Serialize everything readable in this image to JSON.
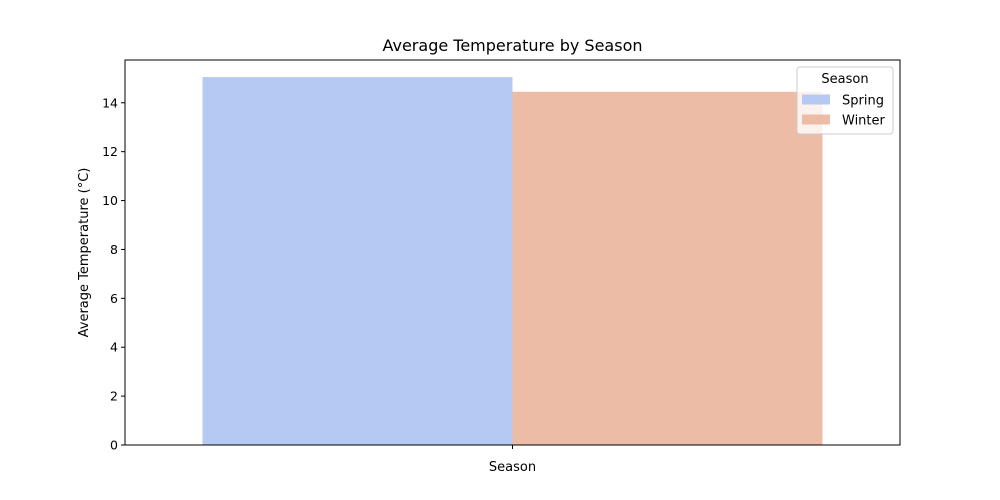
{
  "chart_data": {
    "type": "bar",
    "title": "Average Temperature by Season",
    "xlabel": "Season",
    "ylabel": "Average Temperature (°C)",
    "ylim": [
      0,
      15.75
    ],
    "yticks": [
      0,
      2,
      4,
      6,
      8,
      10,
      12,
      14
    ],
    "grid": false,
    "legend": {
      "title": "Season",
      "placement": "top-right"
    },
    "series": [
      {
        "name": "Spring",
        "value": 15.05,
        "color": "#b5c9f3"
      },
      {
        "name": "Winter",
        "value": 14.45,
        "color": "#ecbca7"
      }
    ]
  }
}
